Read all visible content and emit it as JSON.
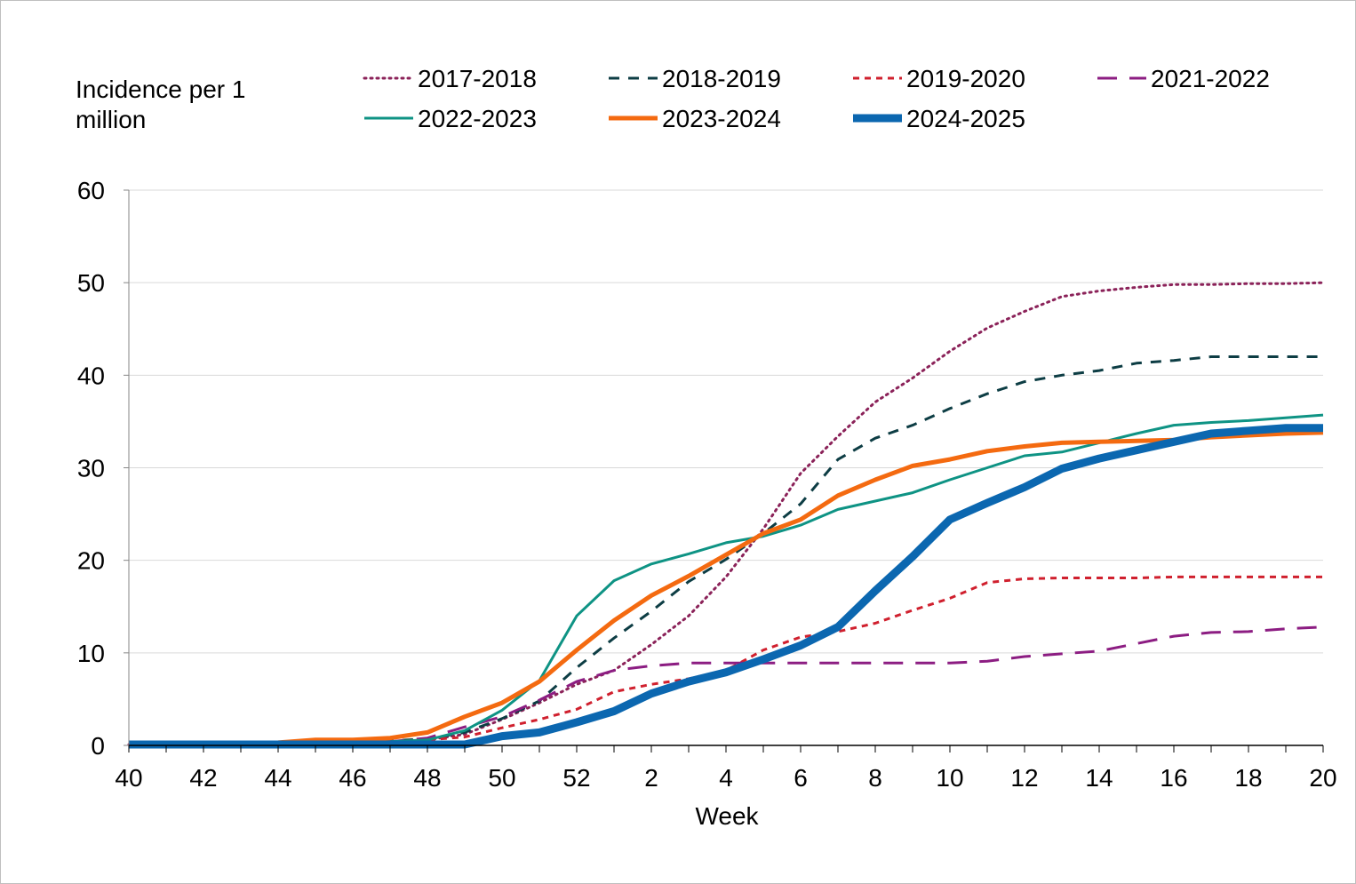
{
  "chart_data": {
    "type": "line",
    "title": "",
    "ylabel": "Incidence per 1 million",
    "ylabel_lines": [
      "Incidence per 1",
      "million"
    ],
    "xlabel": "Week",
    "ylim": [
      0,
      60
    ],
    "yticks": [
      0,
      10,
      20,
      30,
      40,
      50,
      60
    ],
    "weeks": [
      40,
      41,
      42,
      43,
      44,
      45,
      46,
      47,
      48,
      49,
      50,
      51,
      52,
      1,
      2,
      3,
      4,
      5,
      6,
      7,
      8,
      9,
      10,
      11,
      12,
      13,
      14,
      15,
      16,
      17,
      18,
      19,
      20
    ],
    "xtick_labels": [
      "40",
      "42",
      "44",
      "46",
      "48",
      "50",
      "52",
      "2",
      "4",
      "6",
      "8",
      "10",
      "12",
      "14",
      "16",
      "18",
      "20"
    ],
    "grid": true,
    "legend_position": "top",
    "series": [
      {
        "name": "2017-2018",
        "color": "#8b2259",
        "style": "dotted",
        "width": 3,
        "values": [
          0.1,
          0.1,
          0.1,
          0.1,
          0.2,
          0.3,
          0.3,
          0.4,
          0.6,
          1.2,
          2.8,
          4.6,
          6.6,
          8.1,
          10.9,
          14.0,
          18.2,
          23.4,
          29.4,
          33.4,
          37.1,
          39.7,
          42.6,
          45.1,
          46.9,
          48.5,
          49.1,
          49.5,
          49.8,
          49.8,
          49.9,
          49.9,
          50.0
        ]
      },
      {
        "name": "2018-2019",
        "color": "#0d3d44",
        "style": "dashed",
        "width": 3,
        "values": [
          0.1,
          0.1,
          0.1,
          0.1,
          0.2,
          0.3,
          0.3,
          0.5,
          0.7,
          1.4,
          2.9,
          4.8,
          8.4,
          11.6,
          14.5,
          17.7,
          20.1,
          22.9,
          26.1,
          30.9,
          33.2,
          34.6,
          36.4,
          38.0,
          39.3,
          40.0,
          40.5,
          41.3,
          41.6,
          42.0,
          42.0,
          42.0,
          42.0
        ]
      },
      {
        "name": "2019-2020",
        "color": "#d0202e",
        "style": "short-dashed",
        "width": 3,
        "values": [
          0.1,
          0.1,
          0.1,
          0.1,
          0.2,
          0.3,
          0.3,
          0.4,
          0.6,
          0.9,
          1.9,
          2.8,
          3.9,
          5.8,
          6.6,
          7.2,
          8.1,
          10.3,
          11.7,
          12.3,
          13.2,
          14.6,
          15.9,
          17.6,
          18.0,
          18.1,
          18.1,
          18.1,
          18.2,
          18.2,
          18.2,
          18.2,
          18.2
        ]
      },
      {
        "name": "2021-2022",
        "color": "#8c1d82",
        "style": "long-dashed",
        "width": 3,
        "values": [
          0.1,
          0.1,
          0.1,
          0.1,
          0.2,
          0.3,
          0.3,
          0.4,
          0.8,
          2.0,
          3.1,
          4.9,
          6.9,
          8.1,
          8.6,
          8.9,
          8.9,
          8.9,
          8.9,
          8.9,
          8.9,
          8.9,
          8.9,
          9.1,
          9.6,
          9.9,
          10.2,
          11.0,
          11.8,
          12.2,
          12.3,
          12.6,
          12.8
        ]
      },
      {
        "name": "2022-2023",
        "color": "#0e9384",
        "style": "solid",
        "width": 3,
        "values": [
          0.1,
          0.1,
          0.1,
          0.1,
          0.2,
          0.3,
          0.3,
          0.4,
          0.6,
          1.6,
          3.8,
          7.0,
          14.0,
          17.8,
          19.6,
          20.7,
          21.9,
          22.6,
          23.8,
          25.5,
          26.4,
          27.3,
          28.7,
          30.0,
          31.3,
          31.7,
          32.7,
          33.7,
          34.6,
          34.9,
          35.1,
          35.4,
          35.7
        ]
      },
      {
        "name": "2023-2024",
        "color": "#f46a10",
        "style": "solid",
        "width": 5,
        "values": [
          0.1,
          0.1,
          0.1,
          0.2,
          0.3,
          0.6,
          0.6,
          0.8,
          1.4,
          3.1,
          4.6,
          6.9,
          10.3,
          13.5,
          16.2,
          18.3,
          20.6,
          22.9,
          24.4,
          27.0,
          28.7,
          30.2,
          30.9,
          31.8,
          32.3,
          32.7,
          32.8,
          32.9,
          33.0,
          33.3,
          33.5,
          33.7,
          33.8
        ]
      },
      {
        "name": "2024-2025",
        "color": "#0b67b0",
        "style": "solid",
        "width": 9,
        "values": [
          0.1,
          0.1,
          0.1,
          0.1,
          0.1,
          0.1,
          0.1,
          0.1,
          0.1,
          0.1,
          1.0,
          1.4,
          2.5,
          3.7,
          5.6,
          6.9,
          7.9,
          9.3,
          10.8,
          12.8,
          16.7,
          20.4,
          24.4,
          26.2,
          27.9,
          29.9,
          31.0,
          31.9,
          32.8,
          33.7,
          34.0,
          34.3,
          34.3
        ]
      }
    ]
  }
}
